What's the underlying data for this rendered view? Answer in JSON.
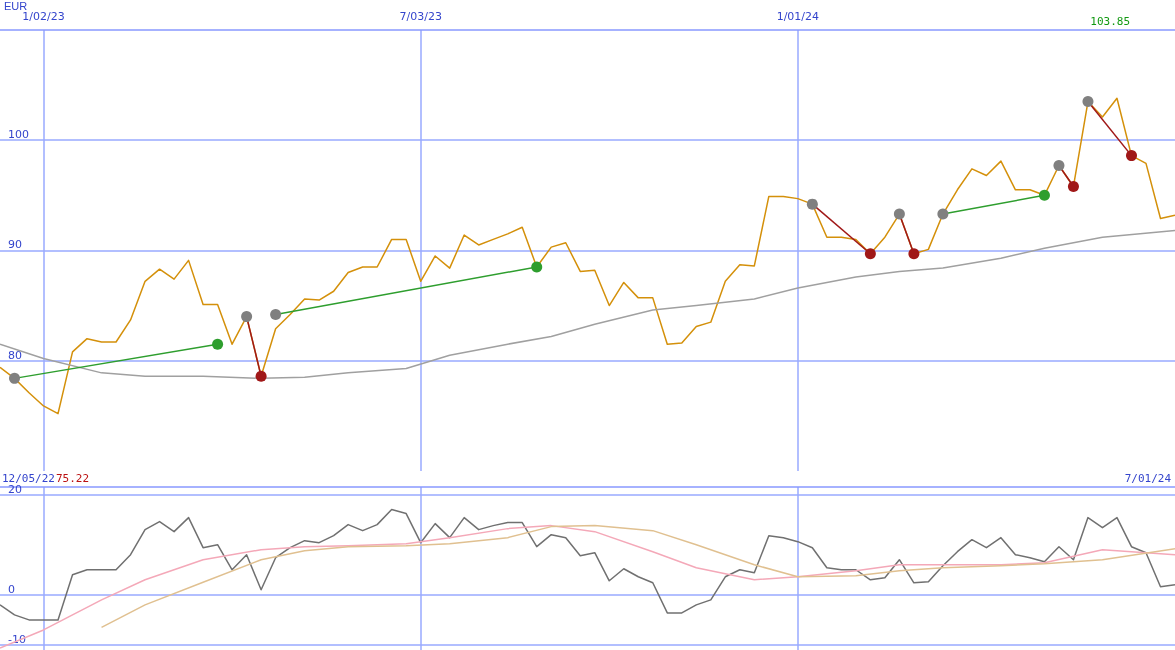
{
  "chart_data": [
    {
      "type": "line",
      "ylabel": "EUR",
      "annotations": [
        "103.85"
      ],
      "grid": true,
      "marker": "none",
      "xlim": [
        "2022-12-12",
        "2024-07-01"
      ],
      "ylim": [
        70,
        110
      ],
      "yticks": [
        80,
        90,
        100
      ],
      "xticks": [
        {
          "value": "2023-01-02",
          "label": "1/02/23"
        },
        {
          "value": "2023-07-03",
          "label": "7/03/23"
        },
        {
          "value": "2024-01-01",
          "label": "1/01/24"
        }
      ],
      "x": [
        "2022-12-12",
        "2022-12-19",
        "2022-12-26",
        "2023-01-02",
        "2023-01-09",
        "2023-01-16",
        "2023-01-23",
        "2023-01-30",
        "2023-02-06",
        "2023-02-13",
        "2023-02-20",
        "2023-02-27",
        "2023-03-06",
        "2023-03-13",
        "2023-03-20",
        "2023-03-27",
        "2023-04-03",
        "2023-04-10",
        "2023-04-17",
        "2023-04-24",
        "2023-05-01",
        "2023-05-08",
        "2023-05-15",
        "2023-05-22",
        "2023-05-29",
        "2023-06-05",
        "2023-06-12",
        "2023-06-19",
        "2023-06-26",
        "2023-07-03",
        "2023-07-10",
        "2023-07-17",
        "2023-07-24",
        "2023-07-31",
        "2023-08-07",
        "2023-08-14",
        "2023-08-21",
        "2023-08-28",
        "2023-09-04",
        "2023-09-11",
        "2023-09-18",
        "2023-09-25",
        "2023-10-02",
        "2023-10-09",
        "2023-10-16",
        "2023-10-23",
        "2023-10-30",
        "2023-11-06",
        "2023-11-13",
        "2023-11-20",
        "2023-11-27",
        "2023-12-04",
        "2023-12-11",
        "2023-12-18",
        "2023-12-25",
        "2024-01-01",
        "2024-01-08",
        "2024-01-15",
        "2024-01-22",
        "2024-01-29",
        "2024-02-05",
        "2024-02-12",
        "2024-02-19",
        "2024-02-26",
        "2024-03-04",
        "2024-03-11",
        "2024-03-18",
        "2024-03-25",
        "2024-04-01",
        "2024-04-08",
        "2024-04-15",
        "2024-04-22",
        "2024-04-29",
        "2024-05-06",
        "2024-05-13",
        "2024-05-20",
        "2024-05-27",
        "2024-06-03",
        "2024-06-10",
        "2024-06-17",
        "2024-06-24",
        "2024-07-01"
      ],
      "series": [
        {
          "color": "#d4900a",
          "values": [
            79.4,
            78.4,
            77.1,
            75.9,
            75.2,
            80.8,
            82.0,
            81.7,
            81.7,
            83.7,
            87.2,
            88.3,
            87.4,
            89.1,
            85.1,
            85.1,
            81.5,
            84.0,
            78.6,
            82.9,
            84.2,
            85.6,
            85.5,
            86.3,
            88.0,
            88.5,
            88.5,
            91.0,
            91.0,
            87.2,
            89.5,
            88.4,
            91.4,
            90.5,
            91.0,
            91.5,
            92.1,
            88.5,
            90.3,
            90.7,
            88.1,
            88.2,
            85.0,
            87.1,
            85.7,
            85.7,
            81.5,
            81.6,
            83.1,
            83.5,
            87.2,
            88.7,
            88.6,
            94.9,
            94.9,
            94.7,
            94.2,
            91.2,
            91.2,
            91.0,
            89.7,
            91.2,
            93.3,
            89.7,
            90.1,
            93.3,
            95.5,
            97.4,
            96.8,
            98.1,
            95.5,
            95.5,
            95.0,
            97.7,
            95.8,
            103.5,
            102.1,
            103.8,
            98.6,
            97.9,
            92.9,
            93.2
          ]
        },
        {
          "color": "#a0a0a0",
          "x": [
            "2022-12-12",
            "2023-01-02",
            "2023-01-30",
            "2023-02-20",
            "2023-03-20",
            "2023-04-17",
            "2023-05-08",
            "2023-05-29",
            "2023-06-26",
            "2023-07-17",
            "2023-08-14",
            "2023-09-04",
            "2023-09-25",
            "2023-10-23",
            "2023-11-13",
            "2023-12-11",
            "2024-01-01",
            "2024-01-29",
            "2024-02-19",
            "2024-03-11",
            "2024-04-08",
            "2024-04-29",
            "2024-05-27",
            "2024-07-01"
          ],
          "values": [
            81.5,
            80.2,
            78.9,
            78.6,
            78.6,
            78.4,
            78.5,
            78.9,
            79.3,
            80.5,
            81.5,
            82.2,
            83.3,
            84.6,
            85.0,
            85.6,
            86.6,
            87.6,
            88.1,
            88.4,
            89.3,
            90.2,
            91.2,
            91.8
          ]
        },
        {
          "color": "#2e9e2e",
          "marker": "circle",
          "x": [
            "2022-12-19",
            "2023-03-27"
          ],
          "values": [
            78.4,
            81.5
          ],
          "colors": [
            "#808080",
            "#2e9e2e"
          ]
        },
        {
          "color": "#2e9e2e",
          "marker": "circle",
          "x": [
            "2023-04-24",
            "2023-08-28"
          ],
          "values": [
            84.2,
            88.5
          ],
          "colors": [
            "#808080",
            "#2e9e2e"
          ]
        },
        {
          "color": "#2e9e2e",
          "marker": "circle",
          "x": [
            "2024-03-11",
            "2024-04-29"
          ],
          "values": [
            93.3,
            95.0
          ],
          "colors": [
            "#808080",
            "#2e9e2e"
          ]
        },
        {
          "color": "#a01818",
          "marker": "circle",
          "x": [
            "2023-04-10",
            "2023-04-17"
          ],
          "values": [
            84.0,
            78.6
          ],
          "colors": [
            "#808080",
            "#a01818"
          ]
        },
        {
          "color": "#a01818",
          "marker": "circle",
          "x": [
            "2024-01-08",
            "2024-02-05"
          ],
          "values": [
            94.2,
            89.7
          ],
          "colors": [
            "#808080",
            "#a01818"
          ]
        },
        {
          "color": "#a01818",
          "marker": "circle",
          "x": [
            "2024-02-19",
            "2024-02-26"
          ],
          "values": [
            93.3,
            89.7
          ],
          "colors": [
            "#808080",
            "#a01818"
          ]
        },
        {
          "color": "#a01818",
          "marker": "circle",
          "x": [
            "2024-05-06",
            "2024-05-13"
          ],
          "values": [
            97.7,
            95.8
          ],
          "colors": [
            "#808080",
            "#a01818"
          ]
        },
        {
          "color": "#a01818",
          "marker": "circle",
          "x": [
            "2024-05-20",
            "2024-06-10"
          ],
          "values": [
            103.5,
            98.6
          ],
          "colors": [
            "#808080",
            "#a01818"
          ]
        }
      ]
    },
    {
      "type": "line",
      "annotations": [
        "12/05/22",
        "75.22",
        "7/01/24"
      ],
      "grid": true,
      "marker": "none",
      "tick_labels": "y",
      "xlim": [
        "2022-12-12",
        "2024-07-01"
      ],
      "ylim": [
        -11,
        21.5
      ],
      "yticks": [
        -10,
        0,
        20
      ],
      "xticks": [
        {
          "value": "2023-01-02",
          "label": null
        },
        {
          "value": "2023-07-03",
          "label": null
        },
        {
          "value": "2024-01-01",
          "label": null
        }
      ],
      "x": [
        "2022-12-12",
        "2022-12-19",
        "2022-12-26",
        "2023-01-02",
        "2023-01-09",
        "2023-01-16",
        "2023-01-23",
        "2023-01-30",
        "2023-02-06",
        "2023-02-13",
        "2023-02-20",
        "2023-02-27",
        "2023-03-06",
        "2023-03-13",
        "2023-03-20",
        "2023-03-27",
        "2023-04-03",
        "2023-04-10",
        "2023-04-17",
        "2023-04-24",
        "2023-05-01",
        "2023-05-08",
        "2023-05-15",
        "2023-05-22",
        "2023-05-29",
        "2023-06-05",
        "2023-06-12",
        "2023-06-19",
        "2023-06-26",
        "2023-07-03",
        "2023-07-10",
        "2023-07-17",
        "2023-07-24",
        "2023-07-31",
        "2023-08-07",
        "2023-08-14",
        "2023-08-21",
        "2023-08-28",
        "2023-09-04",
        "2023-09-11",
        "2023-09-18",
        "2023-09-25",
        "2023-10-02",
        "2023-10-09",
        "2023-10-16",
        "2023-10-23",
        "2023-10-30",
        "2023-11-06",
        "2023-11-13",
        "2023-11-20",
        "2023-11-27",
        "2023-12-04",
        "2023-12-11",
        "2023-12-18",
        "2023-12-25",
        "2024-01-01",
        "2024-01-08",
        "2024-01-15",
        "2024-01-22",
        "2024-01-29",
        "2024-02-05",
        "2024-02-12",
        "2024-02-19",
        "2024-02-26",
        "2024-03-04",
        "2024-03-11",
        "2024-03-18",
        "2024-03-25",
        "2024-04-01",
        "2024-04-08",
        "2024-04-15",
        "2024-04-22",
        "2024-04-29",
        "2024-05-06",
        "2024-05-13",
        "2024-05-20",
        "2024-05-27",
        "2024-06-03",
        "2024-06-10",
        "2024-06-17",
        "2024-06-24",
        "2024-07-01"
      ],
      "series": [
        {
          "color": "#707070",
          "values": [
            -2,
            -4,
            -5,
            -5,
            -5,
            4,
            5,
            5,
            5,
            8,
            13,
            14.6,
            12.6,
            15.4,
            9.4,
            10,
            5,
            8,
            1,
            7.4,
            9.4,
            10.8,
            10.4,
            11.8,
            14,
            12.8,
            14,
            17,
            16.2,
            10.4,
            14.2,
            11.4,
            15.4,
            13,
            13.8,
            14.4,
            14.4,
            9.6,
            12,
            11.4,
            7.8,
            8.4,
            2.8,
            5.2,
            3.6,
            2.4,
            -3.6,
            -3.6,
            -2,
            -1,
            3.6,
            5,
            4.4,
            11.8,
            11.4,
            10.6,
            9.4,
            5.4,
            5,
            5,
            3,
            3.4,
            7,
            2.4,
            2.6,
            5.8,
            8.6,
            11,
            9.4,
            11.4,
            8,
            7.4,
            6.6,
            9.6,
            7,
            15.4,
            13.4,
            15.4,
            9.6,
            8.4,
            1.6,
            2
          ]
        },
        {
          "color": "#f4a8b8",
          "x": [
            "2022-12-12",
            "2023-01-02",
            "2023-01-30",
            "2023-02-20",
            "2023-03-20",
            "2023-04-17",
            "2023-05-08",
            "2023-05-29",
            "2023-06-26",
            "2023-07-17",
            "2023-08-14",
            "2023-09-04",
            "2023-09-25",
            "2023-10-23",
            "2023-11-13",
            "2023-12-11",
            "2024-01-01",
            "2024-01-29",
            "2024-02-19",
            "2024-03-11",
            "2024-04-08",
            "2024-04-29",
            "2024-05-27",
            "2024-07-01"
          ],
          "values": [
            -10.6,
            -7,
            -1,
            3,
            7,
            9,
            9.6,
            9.8,
            10.2,
            11.4,
            13.2,
            13.8,
            12.6,
            8.6,
            5.4,
            3,
            3.6,
            4.8,
            6,
            6,
            6,
            6.4,
            9,
            8
          ]
        },
        {
          "color": "#e0c090",
          "x": [
            "2023-01-30",
            "2023-02-20",
            "2023-03-20",
            "2023-04-17",
            "2023-05-08",
            "2023-05-29",
            "2023-06-26",
            "2023-07-17",
            "2023-08-14",
            "2023-09-04",
            "2023-09-25",
            "2023-10-23",
            "2023-11-13",
            "2023-12-11",
            "2024-01-01",
            "2024-01-29",
            "2024-02-19",
            "2024-03-11",
            "2024-04-08",
            "2024-04-29",
            "2024-05-27",
            "2024-07-01"
          ],
          "values": [
            -6.5,
            -2,
            2.5,
            7,
            8.8,
            9.6,
            9.8,
            10.2,
            11.4,
            13.6,
            13.8,
            12.8,
            10,
            6,
            3.6,
            3.8,
            4.8,
            5.4,
            5.8,
            6.2,
            7,
            9.2
          ]
        }
      ]
    }
  ]
}
